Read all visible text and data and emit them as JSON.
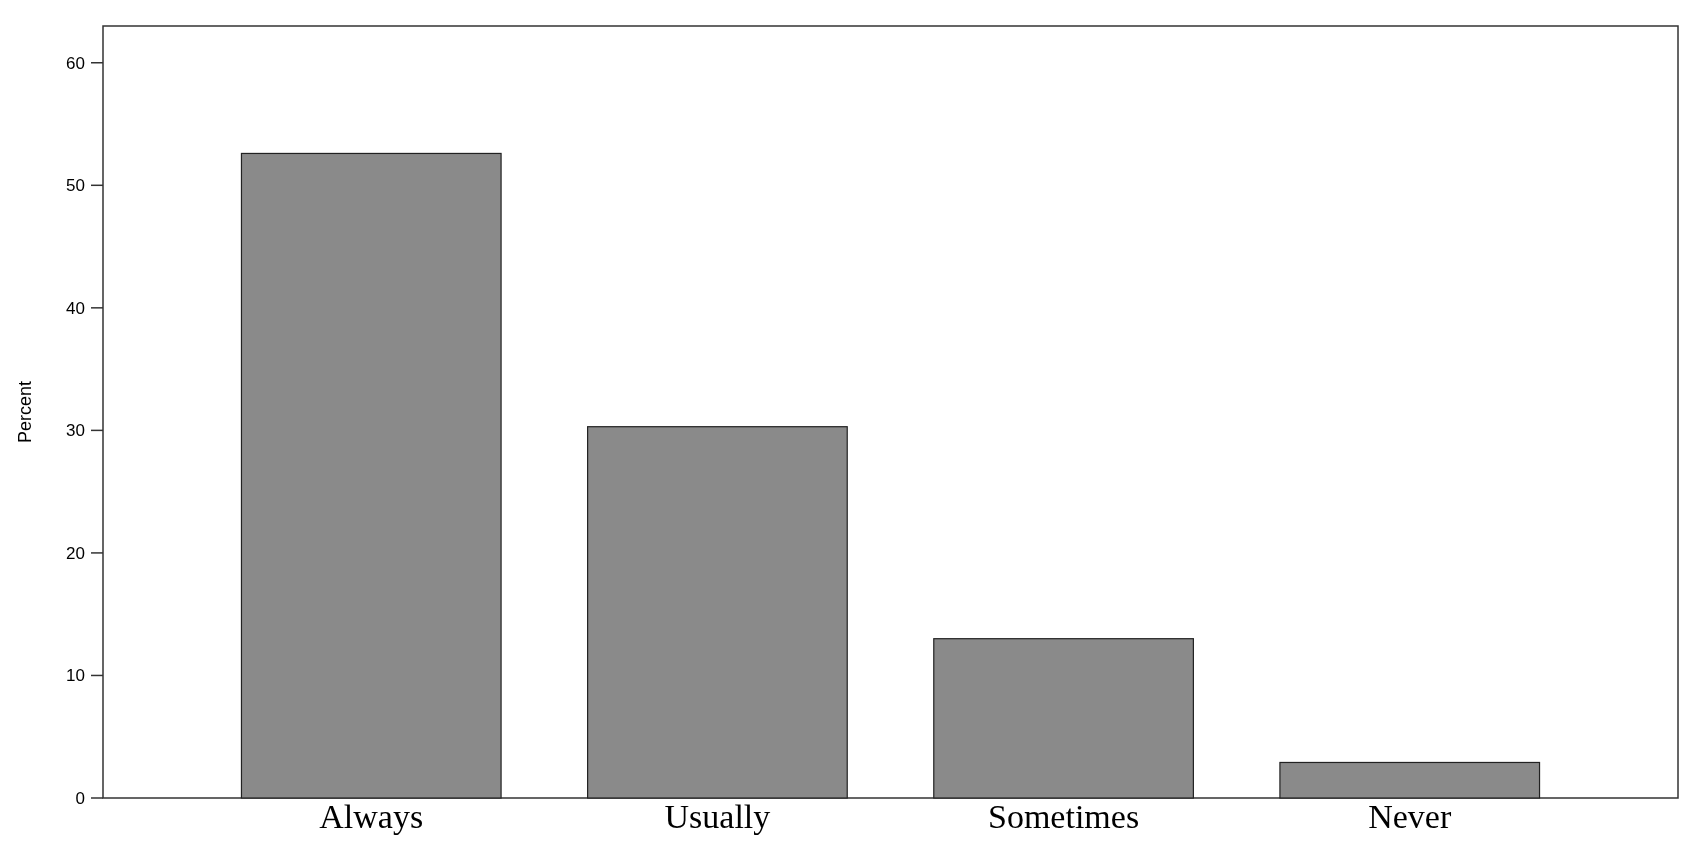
{
  "chart_data": {
    "type": "bar",
    "ylabel": "Percent",
    "categories": [
      "Always",
      "Usually",
      "Sometimes",
      "Never"
    ],
    "values": [
      52.6,
      30.3,
      13.0,
      2.9
    ],
    "color": "#8a8a8a",
    "ylim": [
      0,
      63
    ],
    "yticks": [
      0,
      10,
      20,
      30,
      40,
      50,
      60
    ],
    "grid": false
  }
}
